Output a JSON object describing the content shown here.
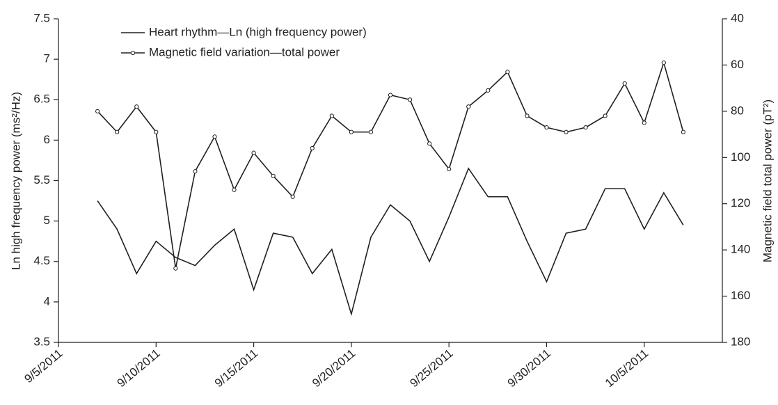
{
  "chart_data": {
    "type": "line",
    "x": [
      "9/7/2011",
      "9/8/2011",
      "9/9/2011",
      "9/10/2011",
      "9/11/2011",
      "9/12/2011",
      "9/13/2011",
      "9/14/2011",
      "9/15/2011",
      "9/16/2011",
      "9/17/2011",
      "9/18/2011",
      "9/19/2011",
      "9/20/2011",
      "9/21/2011",
      "9/22/2011",
      "9/23/2011",
      "9/24/2011",
      "9/25/2011",
      "9/26/2011",
      "9/27/2011",
      "9/28/2011",
      "9/29/2011",
      "9/30/2011",
      "10/1/2011",
      "10/2/2011",
      "10/3/2011",
      "10/4/2011",
      "10/5/2011",
      "10/6/2011",
      "10/7/2011"
    ],
    "series": [
      {
        "name": "Heart rhythm—Ln (high frequency power)",
        "color": "#231f20",
        "marker": "none",
        "values": [
          5.25,
          4.9,
          4.35,
          4.75,
          4.55,
          4.45,
          4.7,
          4.9,
          4.15,
          4.85,
          4.8,
          4.35,
          4.65,
          3.85,
          4.8,
          5.2,
          5.0,
          4.5,
          5.05,
          5.65,
          5.3,
          5.3,
          4.75,
          4.25,
          4.85,
          4.9,
          5.4,
          5.4,
          4.9,
          5.35,
          4.95
        ]
      },
      {
        "name": "Magnetic field variation—total power",
        "color": "#231f20",
        "marker": "circle",
        "axis": "y2",
        "values": [
          80,
          89,
          78,
          89,
          148,
          106,
          91,
          114,
          98,
          108,
          117,
          96,
          82,
          89,
          89,
          73,
          75,
          94,
          105,
          78,
          71,
          63,
          82,
          87,
          89,
          87,
          82,
          68,
          85,
          59,
          89
        ]
      }
    ],
    "xlim": [
      "9/5/2011",
      "10/9/2011"
    ],
    "xticks": [
      "9/5/2011",
      "9/10/2011",
      "9/15/2011",
      "9/20/2011",
      "9/25/2011",
      "9/30/2011",
      "10/5/2011"
    ],
    "ylim": [
      3.5,
      7.5
    ],
    "yticks": [
      3.5,
      4,
      4.5,
      5,
      5.5,
      6,
      6.5,
      7,
      7.5
    ],
    "y2lim": [
      40,
      180
    ],
    "y2ticks": [
      40,
      60,
      80,
      100,
      120,
      140,
      160,
      180
    ],
    "y2_inverted": true,
    "ylabel": "Ln high frequency power (ms²/Hz)",
    "y2label": "Magnetic field total power (pT²)",
    "legend": "top-left",
    "grid": false
  }
}
